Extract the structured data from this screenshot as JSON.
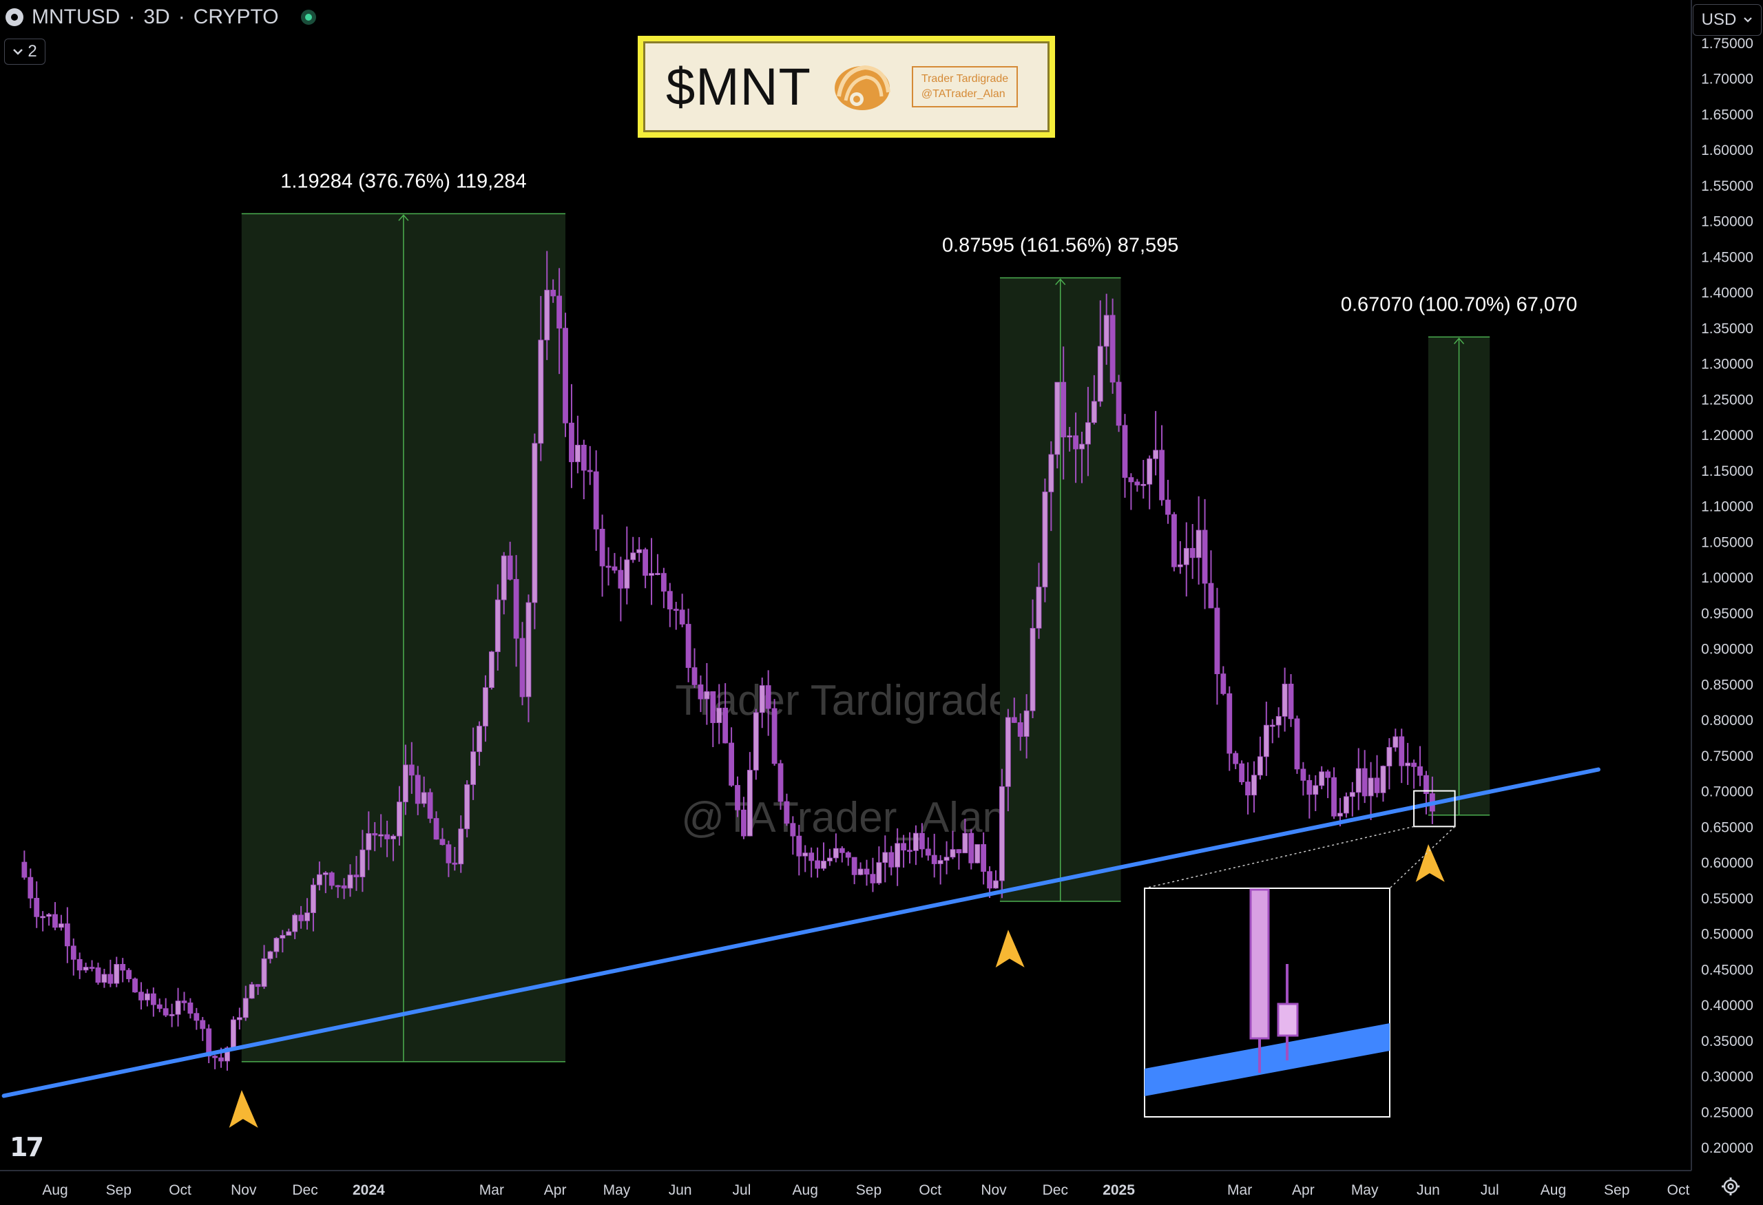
{
  "header": {
    "symbol": "MNTUSD",
    "separator1": "·",
    "interval": "3D",
    "separator2": "·",
    "exchange": "CRYPTO",
    "indicator_count": "2",
    "currency": "USD"
  },
  "badge": {
    "ticker": "$MNT",
    "author_name": "Trader Tardigrade",
    "author_handle": "@TATrader_Alan"
  },
  "watermark": {
    "line1": "Trader Tardigrade",
    "line2": "@TATrader_Alan"
  },
  "branding": {
    "logo_text": "17"
  },
  "colors": {
    "background": "#000000",
    "candle": "#c98fd6",
    "candle_dark": "#a24fc0",
    "trendline": "#3f86ff",
    "range_fill": "#152414",
    "range_border": "#4caf50",
    "arrow": "#f7b733",
    "badge_bg": "#f5ee3a",
    "axis_text": "#d1d4dc"
  },
  "chart_data": {
    "type": "candlestick",
    "symbol": "MNTUSD",
    "interval": "3D",
    "ylim": [
      0.18,
      1.76
    ],
    "y_ticks": [
      "1.75000",
      "1.70000",
      "1.65000",
      "1.60000",
      "1.55000",
      "1.50000",
      "1.45000",
      "1.40000",
      "1.35000",
      "1.30000",
      "1.25000",
      "1.20000",
      "1.15000",
      "1.10000",
      "1.05000",
      "1.00000",
      "0.95000",
      "0.90000",
      "0.85000",
      "0.80000",
      "0.75000",
      "0.70000",
      "0.65000",
      "0.60000",
      "0.55000",
      "0.50000",
      "0.45000",
      "0.40000",
      "0.35000",
      "0.30000",
      "0.25000",
      "0.20000"
    ],
    "x_ticks": [
      "Aug",
      "Sep",
      "Oct",
      "Nov",
      "Dec",
      "2024",
      "Mar",
      "Apr",
      "May",
      "Jun",
      "Jul",
      "Aug",
      "Sep",
      "Oct",
      "Nov",
      "Dec",
      "2025",
      "Mar",
      "Apr",
      "May",
      "Jun",
      "Jul",
      "Aug",
      "Sep",
      "Oct"
    ],
    "x_tick_dates": [
      "2023-08-01",
      "2023-09-01",
      "2023-10-01",
      "2023-11-01",
      "2023-12-01",
      "2024-01-01",
      "2024-03-01",
      "2024-04-01",
      "2024-05-01",
      "2024-06-01",
      "2024-07-01",
      "2024-08-01",
      "2024-09-01",
      "2024-10-01",
      "2024-11-01",
      "2024-12-01",
      "2025-01-01",
      "2025-03-01",
      "2025-04-01",
      "2025-05-01",
      "2025-06-01",
      "2025-07-01",
      "2025-08-01",
      "2025-09-01",
      "2025-10-01"
    ],
    "x_tick_bold": [
      false,
      false,
      false,
      false,
      false,
      true,
      false,
      false,
      false,
      false,
      false,
      false,
      false,
      false,
      false,
      false,
      true,
      false,
      false,
      false,
      false,
      false,
      false,
      false,
      false
    ],
    "price_path": [
      [
        "2023-07-17",
        0.6
      ],
      [
        "2023-07-27",
        0.53
      ],
      [
        "2023-08-08",
        0.51
      ],
      [
        "2023-08-15",
        0.46
      ],
      [
        "2023-08-25",
        0.43
      ],
      [
        "2023-09-05",
        0.45
      ],
      [
        "2023-09-14",
        0.41
      ],
      [
        "2023-09-28",
        0.39
      ],
      [
        "2023-10-10",
        0.4
      ],
      [
        "2023-10-19",
        0.33
      ],
      [
        "2023-10-25",
        0.32
      ],
      [
        "2023-10-31",
        0.38
      ],
      [
        "2023-11-10",
        0.43
      ],
      [
        "2023-11-21",
        0.5
      ],
      [
        "2023-12-02",
        0.53
      ],
      [
        "2023-12-14",
        0.59
      ],
      [
        "2023-12-25",
        0.56
      ],
      [
        "2024-01-05",
        0.65
      ],
      [
        "2024-01-14",
        0.61
      ],
      [
        "2024-01-23",
        0.74
      ],
      [
        "2024-02-01",
        0.67
      ],
      [
        "2024-02-10",
        0.6
      ],
      [
        "2024-02-17",
        0.61
      ],
      [
        "2024-02-25",
        0.78
      ],
      [
        "2024-03-05",
        0.92
      ],
      [
        "2024-03-12",
        1.04
      ],
      [
        "2024-03-20",
        0.83
      ],
      [
        "2024-03-26",
        1.26
      ],
      [
        "2024-04-03",
        1.43
      ],
      [
        "2024-04-10",
        1.2
      ],
      [
        "2024-04-20",
        1.13
      ],
      [
        "2024-04-30",
        1.0
      ],
      [
        "2024-05-10",
        1.01
      ],
      [
        "2024-05-20",
        1.02
      ],
      [
        "2024-06-02",
        0.95
      ],
      [
        "2024-06-14",
        0.85
      ],
      [
        "2024-06-25",
        0.78
      ],
      [
        "2024-07-05",
        0.62
      ],
      [
        "2024-07-13",
        0.89
      ],
      [
        "2024-07-23",
        0.7
      ],
      [
        "2024-08-01",
        0.61
      ],
      [
        "2024-08-10",
        0.6
      ],
      [
        "2024-08-20",
        0.61
      ],
      [
        "2024-09-01",
        0.58
      ],
      [
        "2024-09-14",
        0.6
      ],
      [
        "2024-09-28",
        0.64
      ],
      [
        "2024-10-08",
        0.61
      ],
      [
        "2024-10-20",
        0.63
      ],
      [
        "2024-11-01",
        0.59
      ],
      [
        "2024-11-04",
        0.55
      ],
      [
        "2024-11-10",
        0.78
      ],
      [
        "2024-11-20",
        0.8
      ],
      [
        "2024-11-27",
        1.04
      ],
      [
        "2024-12-04",
        1.25
      ],
      [
        "2024-12-13",
        1.16
      ],
      [
        "2024-12-22",
        1.21
      ],
      [
        "2024-12-29",
        1.37
      ],
      [
        "2025-01-08",
        1.14
      ],
      [
        "2025-01-21",
        1.17
      ],
      [
        "2025-02-01",
        1.0
      ],
      [
        "2025-02-12",
        1.05
      ],
      [
        "2025-02-20",
        0.91
      ],
      [
        "2025-02-27",
        0.74
      ],
      [
        "2025-03-08",
        0.68
      ],
      [
        "2025-03-17",
        0.81
      ],
      [
        "2025-03-26",
        0.83
      ],
      [
        "2025-04-03",
        0.72
      ],
      [
        "2025-04-14",
        0.71
      ],
      [
        "2025-04-23",
        0.66
      ],
      [
        "2025-05-01",
        0.72
      ],
      [
        "2025-05-10",
        0.69
      ],
      [
        "2025-05-18",
        0.78
      ],
      [
        "2025-05-25",
        0.73
      ],
      [
        "2025-06-01",
        0.72
      ],
      [
        "2025-06-04",
        0.68
      ]
    ],
    "trendline": {
      "start": [
        "2023-07-07",
        0.272
      ],
      "end": [
        "2025-08-23",
        0.73
      ]
    },
    "ranges": [
      {
        "label": "1.19284 (376.76%) 119,284",
        "x0": "2023-10-31",
        "x1": "2024-04-06",
        "y0": 0.32,
        "y1": 1.51
      },
      {
        "label": "0.87595 (161.56%) 87,595",
        "x0": "2024-11-04",
        "x1": "2025-01-02",
        "y0": 0.545,
        "y1": 1.42
      },
      {
        "label": "0.67070 (100.70%) 67,070",
        "x0": "2025-06-01",
        "x1": "2025-07-01",
        "y0": 0.666,
        "y1": 1.337
      }
    ],
    "arrows": [
      {
        "date": "2023-10-31",
        "price": 0.25
      },
      {
        "date": "2024-11-08",
        "price": 0.475
      },
      {
        "date": "2025-06-01",
        "price": 0.595
      }
    ],
    "highlight_box": {
      "x0": "2025-05-25",
      "x1": "2025-06-14",
      "y0": 0.65,
      "y1": 0.7
    }
  }
}
